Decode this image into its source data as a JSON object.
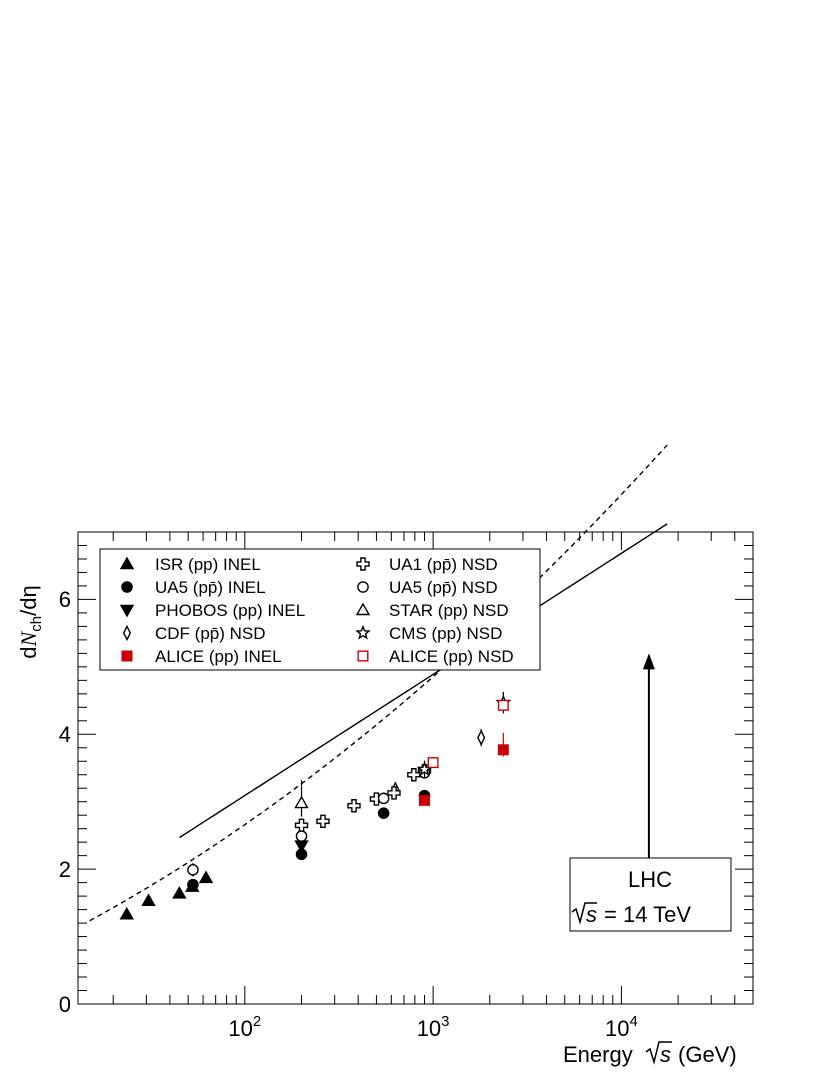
{
  "chart_data": {
    "type": "scatter",
    "xlabel": "Energy √s (GeV)",
    "xlabel_parts": {
      "pre": "Energy",
      "var": "s",
      "post": "(GeV)"
    },
    "ylabel_parts": {
      "d": "d",
      "N": "N",
      "sub": "ch",
      "rest": "/dη"
    },
    "xscale": "log",
    "xlim": [
      13,
      50000
    ],
    "ylim": [
      0,
      7
    ],
    "y_ticks": [
      "0",
      "2",
      "4",
      "6"
    ],
    "x_ticks": [
      {
        "value": 100,
        "base": "10",
        "exp": "2"
      },
      {
        "value": 1000,
        "base": "10",
        "exp": "3"
      },
      {
        "value": 10000,
        "base": "10",
        "exp": "4"
      }
    ],
    "grid": false,
    "legend_position": "top-left",
    "series": [
      {
        "name": "ISR (pp) INEL",
        "marker": "triangle-up",
        "filled": true,
        "color": "#000000",
        "points": [
          [
            23.6,
            1.33,
            0,
            0
          ],
          [
            30.8,
            1.53,
            0,
            0
          ],
          [
            44.9,
            1.64,
            0,
            0
          ],
          [
            52.6,
            1.74,
            0,
            0
          ],
          [
            62.2,
            1.87,
            0,
            0
          ]
        ]
      },
      {
        "name": "UA5 (pp̄) INEL",
        "marker": "circle",
        "filled": true,
        "color": "#000000",
        "points": [
          [
            53,
            1.77,
            0.06,
            0.06
          ],
          [
            200,
            2.22,
            0,
            0
          ],
          [
            546,
            2.83,
            0,
            0
          ],
          [
            900,
            3.09,
            0,
            0
          ]
        ]
      },
      {
        "name": "PHOBOS (pp) INEL",
        "marker": "triangle-down",
        "filled": true,
        "color": "#000000",
        "points": [
          [
            200,
            2.35,
            0.1,
            0.1
          ]
        ]
      },
      {
        "name": "CDF (pp̄) NSD",
        "marker": "diamond",
        "filled": false,
        "color": "#000000",
        "points": [
          [
            630,
            3.18,
            0.1,
            0.1
          ],
          [
            1800,
            3.95,
            0.13,
            0.13
          ]
        ]
      },
      {
        "name": "ALICE (pp) INEL",
        "marker": "square",
        "filled": true,
        "color": "#cc0000",
        "points": [
          [
            900,
            3.02,
            0.05,
            0.05
          ],
          [
            2360,
            3.77,
            0.25,
            0.1
          ]
        ]
      },
      {
        "name": "UA1 (pp̄) NSD",
        "marker": "cross",
        "filled": false,
        "color": "#000000",
        "points": [
          [
            200,
            2.65,
            0.1,
            0.1
          ],
          [
            260,
            2.71,
            0,
            0
          ],
          [
            380,
            2.94,
            0,
            0
          ],
          [
            500,
            3.04,
            0,
            0
          ],
          [
            620,
            3.13,
            0,
            0
          ],
          [
            790,
            3.4,
            0,
            0
          ],
          [
            900,
            3.46,
            0,
            0
          ]
        ]
      },
      {
        "name": "UA5 (pp̄) NSD",
        "marker": "circle",
        "filled": false,
        "color": "#000000",
        "points": [
          [
            53,
            1.99,
            0.1,
            0.1
          ],
          [
            200,
            2.49,
            0,
            0
          ],
          [
            546,
            3.05,
            0,
            0
          ],
          [
            900,
            3.43,
            0,
            0
          ]
        ]
      },
      {
        "name": "STAR (pp) NSD",
        "marker": "triangle-up",
        "filled": false,
        "color": "#000000",
        "points": [
          [
            200,
            2.98,
            0.34,
            0.2
          ]
        ]
      },
      {
        "name": "CMS (pp) NSD",
        "marker": "star",
        "filled": false,
        "color": "#000000",
        "points": [
          [
            900,
            3.48,
            0.13,
            0.13
          ],
          [
            2360,
            4.47,
            0.16,
            0.16
          ]
        ]
      },
      {
        "name": "ALICE (pp) NSD",
        "marker": "square",
        "filled": false,
        "color": "#cc0000",
        "points": [
          [
            1000,
            3.58,
            0.05,
            0.05
          ],
          [
            2360,
            4.43,
            0.08,
            0.08
          ]
        ]
      }
    ],
    "fits": [
      {
        "style": "solid",
        "x_range": [
          45,
          17500
        ],
        "a": -0.5,
        "b": 0.39,
        "c": 0.0
      },
      {
        "style": "dashed",
        "x_range": [
          15,
          17500
        ],
        "a": -0.2,
        "b": 0.2,
        "c": 0.012
      }
    ],
    "annotation": {
      "line1": "LHC",
      "line2_pre": "",
      "line2_var": "s",
      "line2_post": "= 14 TeV",
      "arrow_x": 14000,
      "arrow_y_from": 2.5,
      "arrow_y_to": 5.2
    }
  }
}
